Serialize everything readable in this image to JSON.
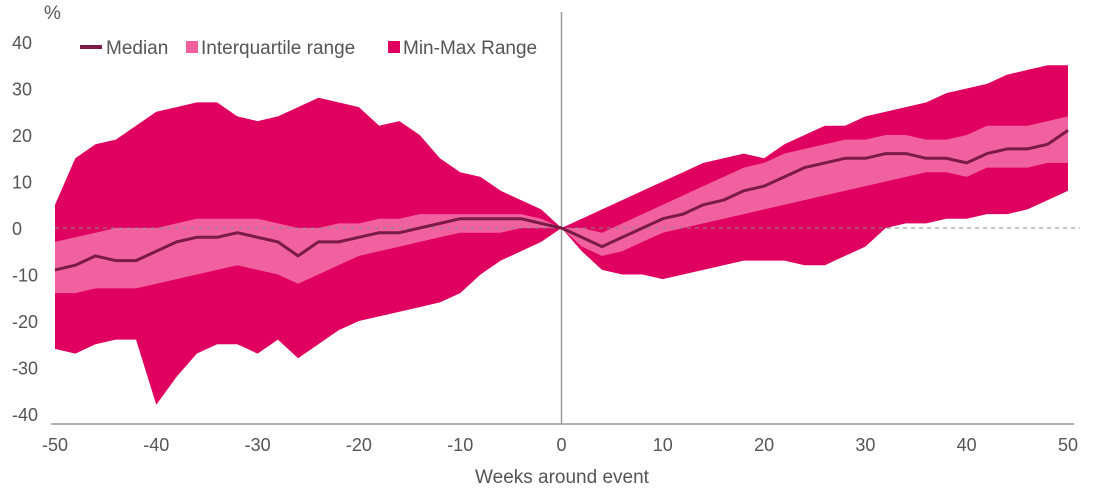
{
  "chart_data": {
    "type": "area",
    "title": "",
    "xlabel": "Weeks around event",
    "ylabel": "%",
    "xlim": [
      -50,
      50
    ],
    "ylim": [
      -40,
      40
    ],
    "xticks": [
      "-50",
      "-40",
      "-30",
      "-20",
      "-10",
      "0",
      "10",
      "20",
      "30",
      "40",
      "50"
    ],
    "yticks": [
      "40",
      "30",
      "20",
      "10",
      "0",
      "-10",
      "-20",
      "-30",
      "-40"
    ],
    "zero_line": "dashed",
    "event_line_x": 0,
    "legend_position": "top-left",
    "colors": {
      "median": "#7a1a45",
      "iqr": "#f2619f",
      "minmax": "#e0005f",
      "axis": "#999999",
      "text": "#555555"
    },
    "x": [
      -50,
      -48,
      -46,
      -44,
      -42,
      -40,
      -38,
      -36,
      -34,
      -32,
      -30,
      -28,
      -26,
      -24,
      -22,
      -20,
      -18,
      -16,
      -14,
      -12,
      -10,
      -8,
      -6,
      -4,
      -2,
      0,
      2,
      4,
      6,
      8,
      10,
      12,
      14,
      16,
      18,
      20,
      22,
      24,
      26,
      28,
      30,
      32,
      34,
      36,
      38,
      40,
      42,
      44,
      46,
      48,
      50
    ],
    "series": [
      {
        "name": "Median",
        "kind": "line",
        "values": [
          -9,
          -8,
          -6,
          -7,
          -7,
          -5,
          -3,
          -2,
          -2,
          -1,
          -2,
          -3,
          -6,
          -3,
          -3,
          -2,
          -1,
          -1,
          0,
          1,
          2,
          2,
          2,
          2,
          1,
          0,
          -2,
          -4,
          -2,
          0,
          2,
          3,
          5,
          6,
          8,
          9,
          11,
          13,
          14,
          15,
          15,
          16,
          16,
          15,
          15,
          14,
          16,
          17,
          17,
          18,
          21
        ]
      },
      {
        "name": "Interquartile range",
        "kind": "band",
        "upper": [
          -3,
          -2,
          -1,
          0,
          0,
          0,
          1,
          2,
          2,
          2,
          2,
          1,
          0,
          0,
          1,
          1,
          2,
          2,
          3,
          3,
          3,
          3,
          3,
          3,
          2,
          0,
          0,
          -1,
          1,
          3,
          5,
          7,
          9,
          11,
          13,
          14,
          16,
          17,
          18,
          19,
          19,
          20,
          20,
          19,
          19,
          20,
          22,
          22,
          22,
          23,
          24
        ],
        "lower": [
          -14,
          -14,
          -13,
          -13,
          -13,
          -12,
          -11,
          -10,
          -9,
          -8,
          -9,
          -10,
          -12,
          -10,
          -8,
          -6,
          -5,
          -4,
          -3,
          -2,
          -1,
          -1,
          -1,
          0,
          0,
          0,
          -4,
          -6,
          -5,
          -3,
          -1,
          0,
          1,
          2,
          3,
          4,
          5,
          6,
          7,
          8,
          9,
          10,
          11,
          12,
          12,
          11,
          13,
          13,
          13,
          14,
          14
        ]
      },
      {
        "name": "Min-Max Range",
        "kind": "band",
        "upper": [
          5,
          15,
          18,
          19,
          22,
          25,
          26,
          27,
          27,
          24,
          23,
          24,
          26,
          28,
          27,
          26,
          22,
          23,
          20,
          15,
          12,
          11,
          8,
          6,
          4,
          0,
          2,
          4,
          6,
          8,
          10,
          12,
          14,
          15,
          16,
          15,
          18,
          20,
          22,
          22,
          24,
          25,
          26,
          27,
          29,
          30,
          31,
          33,
          34,
          35,
          35
        ],
        "lower": [
          -26,
          -27,
          -25,
          -24,
          -24,
          -38,
          -32,
          -27,
          -25,
          -25,
          -27,
          -24,
          -28,
          -25,
          -22,
          -20,
          -19,
          -18,
          -17,
          -16,
          -14,
          -10,
          -7,
          -5,
          -3,
          0,
          -5,
          -9,
          -10,
          -10,
          -11,
          -10,
          -9,
          -8,
          -7,
          -7,
          -7,
          -8,
          -8,
          -6,
          -4,
          0,
          1,
          1,
          2,
          2,
          3,
          3,
          4,
          6,
          8
        ]
      }
    ]
  }
}
